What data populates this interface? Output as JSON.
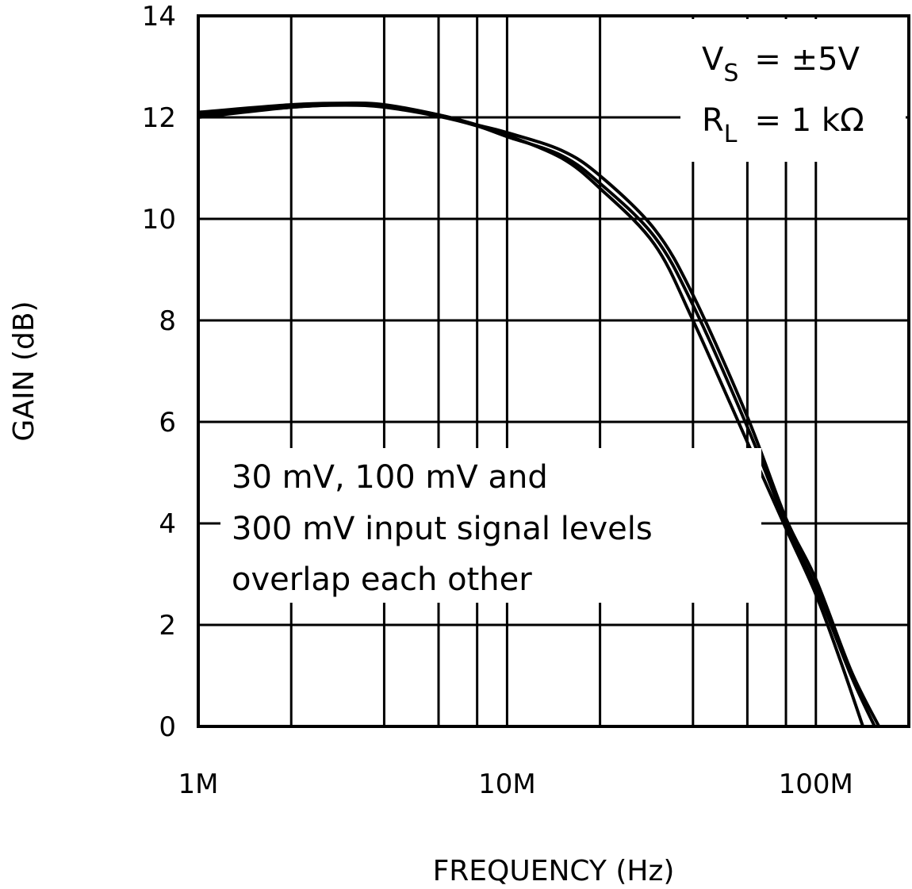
{
  "chart_data": {
    "type": "line",
    "title": "",
    "xlabel": "FREQUENCY (Hz)",
    "ylabel": "GAIN (dB)",
    "x_scale": "log",
    "xlim": [
      1000000,
      200000000
    ],
    "ylim": [
      0,
      14
    ],
    "grid": true,
    "x_ticks": [
      {
        "value": 1000000,
        "label": "1M"
      },
      {
        "value": 10000000,
        "label": "10M"
      },
      {
        "value": 100000000,
        "label": "100M"
      }
    ],
    "x_gridlines": [
      2000000,
      4000000,
      6000000,
      8000000,
      10000000,
      20000000,
      40000000,
      60000000,
      80000000,
      100000000
    ],
    "y_ticks": [
      0,
      2,
      4,
      6,
      8,
      10,
      12,
      14
    ],
    "annotations": {
      "conditions": [
        {
          "main": "V",
          "sub": "S",
          "rest": "=  ±5V"
        },
        {
          "main": "R",
          "sub": "L",
          "rest": "=  1 kΩ"
        }
      ],
      "note": [
        "30 mV, 100 mV and",
        "300 mV input signal levels",
        "overlap each other"
      ]
    },
    "series": [
      {
        "x": [
          1000000.0,
          2000000.0,
          3000000.0,
          4000000.0,
          6000000.0,
          8000000.0,
          10000000.0,
          15000000.0,
          20000000.0,
          30000000.0,
          40000000.0,
          60000000.0,
          80000000.0,
          100000000.0,
          120000000.0,
          142000000.0
        ],
        "y": [
          12.05,
          12.2,
          12.25,
          12.22,
          12.05,
          11.85,
          11.65,
          11.2,
          10.6,
          9.5,
          8.0,
          5.6,
          3.9,
          2.6,
          1.3,
          0
        ]
      },
      {
        "x": [
          1000000.0,
          2000000.0,
          3000000.0,
          4000000.0,
          6000000.0,
          8000000.0,
          10000000.0,
          15000000.0,
          20000000.0,
          30000000.0,
          40000000.0,
          60000000.0,
          80000000.0,
          100000000.0,
          130000000.0,
          160000000.0
        ],
        "y": [
          12.1,
          12.25,
          12.28,
          12.25,
          12.05,
          11.85,
          11.7,
          11.35,
          10.85,
          9.8,
          8.5,
          6.1,
          4.1,
          2.9,
          1.1,
          0
        ]
      },
      {
        "x": [
          1000000.0,
          2000000.0,
          3000000.0,
          4000000.0,
          6000000.0,
          8000000.0,
          10000000.0,
          15000000.0,
          20000000.0,
          30000000.0,
          40000000.0,
          60000000.0,
          80000000.0,
          100000000.0,
          130000000.0,
          155000000.0
        ],
        "y": [
          12.0,
          12.2,
          12.24,
          12.2,
          12.02,
          11.83,
          11.62,
          11.25,
          10.7,
          9.65,
          8.3,
          5.9,
          4.0,
          2.75,
          1.0,
          0
        ]
      }
    ],
    "line_color": "#000000",
    "background": "#ffffff"
  }
}
